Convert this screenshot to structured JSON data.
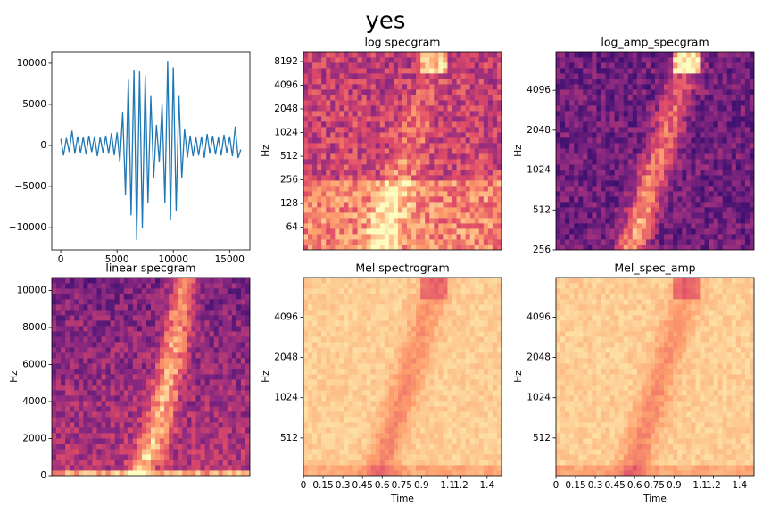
{
  "title": "yes",
  "chart_data": [
    {
      "type": "line",
      "color": "#1f77b4",
      "x": [
        0,
        250,
        500,
        750,
        1000,
        1250,
        1500,
        1750,
        2000,
        2250,
        2500,
        2750,
        3000,
        3250,
        3500,
        3750,
        4000,
        4250,
        4500,
        4750,
        5000,
        5250,
        5500,
        5750,
        6000,
        6250,
        6500,
        6750,
        7000,
        7250,
        7500,
        7750,
        8000,
        8250,
        8500,
        8750,
        9000,
        9250,
        9500,
        9750,
        10000,
        10250,
        10500,
        10750,
        11000,
        11250,
        11500,
        11750,
        12000,
        12250,
        12500,
        12750,
        13000,
        13250,
        13500,
        13750,
        14000,
        14250,
        14500,
        14750,
        15000,
        15250,
        15500,
        15750,
        16000
      ],
      "values": [
        800,
        -1200,
        900,
        -800,
        1800,
        -1000,
        1100,
        -900,
        1000,
        -1100,
        1200,
        -800,
        1100,
        -1300,
        1000,
        -900,
        1200,
        -1000,
        1500,
        -1200,
        1600,
        -2000,
        4000,
        -6000,
        8000,
        -8500,
        9200,
        -11500,
        9000,
        -10000,
        8500,
        -7000,
        6000,
        -4000,
        2500,
        -2000,
        5000,
        -7000,
        10300,
        -9000,
        9500,
        -8000,
        6000,
        -4000,
        2000,
        -1500,
        1200,
        -1300,
        1000,
        -1200,
        1100,
        -1500,
        1400,
        -1000,
        1200,
        -1100,
        1000,
        -1200,
        1300,
        -900,
        1100,
        -1300,
        2300,
        -1500,
        -500
      ],
      "xlim": [
        -800,
        16800
      ],
      "xticks": [
        0,
        5000,
        10000,
        15000
      ],
      "ylim": [
        -12700,
        11400
      ],
      "yticks": [
        {
          "value": -10000,
          "label": "−10000"
        },
        {
          "value": -5000,
          "label": "−5000"
        },
        0,
        5000,
        10000
      ]
    },
    {
      "type": "spectrogram",
      "style": "log",
      "title": "log specgram",
      "ylabel": "Hz",
      "yscale": "log",
      "ylim": [
        33,
        10900
      ],
      "yticks": [
        64,
        128,
        256,
        512,
        1024,
        2048,
        4096,
        8192
      ]
    },
    {
      "type": "spectrogram",
      "style": "logamp",
      "title": "log_amp_specgram",
      "ylabel": "Hz",
      "yscale": "log",
      "ylim": [
        256,
        8000
      ],
      "yticks": [
        256,
        512,
        1024,
        2048,
        4096
      ]
    },
    {
      "type": "spectrogram",
      "style": "linear",
      "title": "linear specgram",
      "ylabel": "Hz",
      "yscale": "linear",
      "ylim": [
        0,
        10700
      ],
      "yticks": [
        0,
        2000,
        4000,
        6000,
        8000,
        10000
      ]
    },
    {
      "type": "spectrogram",
      "style": "mel",
      "title": "Mel spectrogram",
      "ylabel": "Hz",
      "xlabel": "Time",
      "yscale": "log",
      "ylim": [
        268,
        8100
      ],
      "yticks": [
        512,
        1024,
        2048,
        4096
      ],
      "xlim": [
        0,
        1.51
      ],
      "xticks": [
        0,
        0.15,
        0.3,
        0.45,
        0.6,
        0.75,
        0.9,
        1.1,
        1.2,
        1.4
      ]
    },
    {
      "type": "spectrogram",
      "style": "mel",
      "title": "Mel_spec_amp",
      "ylabel": "Hz",
      "xlabel": "Time",
      "yscale": "log",
      "ylim": [
        268,
        8100
      ],
      "yticks": [
        512,
        1024,
        2048,
        4096
      ],
      "xlim": [
        0,
        1.51
      ],
      "xticks": [
        0,
        0.15,
        0.3,
        0.45,
        0.6,
        0.75,
        0.9,
        1.1,
        1.2,
        1.4
      ]
    }
  ]
}
